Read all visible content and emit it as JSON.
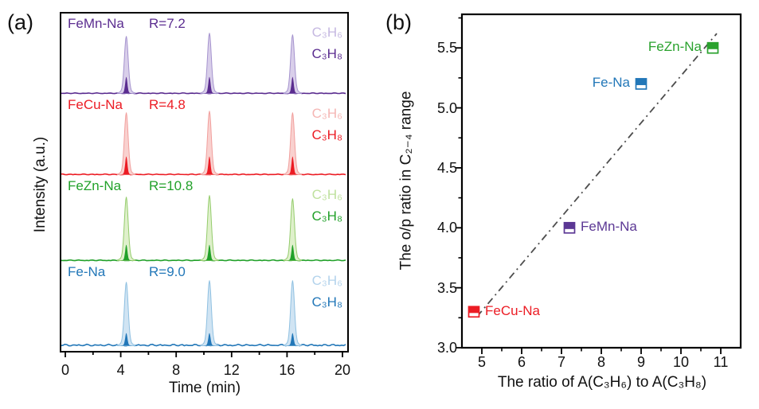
{
  "figure": {
    "background": "#ffffff",
    "text_color": "#111111"
  },
  "chart_data": [
    {
      "type": "line",
      "panel_tag": "(a)",
      "xlabel": "Time (min)",
      "ylabel": "Intensity (a.u.)",
      "xlim": [
        0,
        20
      ],
      "xticks": [
        0,
        4,
        8,
        12,
        16,
        20
      ],
      "minor_xticks": [
        2,
        6,
        10,
        14,
        18
      ],
      "grid": false,
      "peak_times_min": [
        4.4,
        10.4,
        16.4
      ],
      "peak_description": "Each peak cluster = tall light peak (C3H6) overlapping a short dark peak (C3H8); intensity in arbitrary units",
      "traces": [
        {
          "name": "FeMn-Na",
          "r_label": "R=7.2",
          "ratio": 7.2,
          "species_light": "C₃H₆",
          "species_dark": "C₃H₈",
          "color_dark": "#5b2d90",
          "color_light_fill": "#d9cfea",
          "color_light_line": "#a593ce",
          "color_light_label": "#c5b8e1",
          "light_peak_heights": [
            72,
            76,
            74
          ],
          "dark_peak_height": 21,
          "noise_amp": 0.9
        },
        {
          "name": "FeCu-Na",
          "r_label": "R=4.8",
          "ratio": 4.8,
          "species_light": "C₃H₆",
          "species_dark": "C₃H₈",
          "color_dark": "#ec1c24",
          "color_light_fill": "#f9d1cf",
          "color_light_line": "#f19f9d",
          "color_light_label": "#f5b6b4",
          "light_peak_heights": [
            78,
            80,
            78
          ],
          "dark_peak_height": 23,
          "noise_amp": 1.0
        },
        {
          "name": "FeZn-Na",
          "r_label": "R=10.8",
          "ratio": 10.8,
          "species_light": "C₃H₆",
          "species_dark": "C₃H₈",
          "color_dark": "#22a12a",
          "color_light_fill": "#dff0cb",
          "color_light_line": "#94cc6c",
          "color_light_label": "#bfe19e",
          "light_peak_heights": [
            80,
            82,
            78
          ],
          "dark_peak_height": 20,
          "noise_amp": 1.0
        },
        {
          "name": "Fe-Na",
          "r_label": "R=9.0",
          "ratio": 9.0,
          "species_light": "C₃H₆",
          "species_dark": "C₃H₈",
          "color_dark": "#2277b8",
          "color_light_fill": "#d0e4f3",
          "color_light_line": "#8fc0e1",
          "color_light_label": "#b3d3ec",
          "light_peak_heights": [
            80,
            82,
            82
          ],
          "dark_peak_height": 16,
          "noise_amp": 2.0
        }
      ]
    },
    {
      "type": "scatter",
      "panel_tag": "(b)",
      "xlabel": "The ratio of A(C₃H₆) to A(C₃H₈)",
      "ylabel": "The o/p ratio in C₂₋₄ range",
      "xlim": [
        4.5,
        11.5
      ],
      "ylim": [
        3.0,
        5.78
      ],
      "xticks": [
        5,
        6,
        7,
        8,
        9,
        10,
        11
      ],
      "yticks": [
        3.0,
        3.5,
        4.0,
        4.5,
        5.0,
        5.5
      ],
      "minor_step_x": 0.5,
      "minor_step_y": 0.25,
      "grid": false,
      "legend": "none",
      "marker": "square-top-half-filled",
      "points": [
        {
          "label": "FeCu-Na",
          "x": 4.8,
          "y": 3.3,
          "color": "#ec1c24",
          "label_side": "right"
        },
        {
          "label": "FeMn-Na",
          "x": 7.2,
          "y": 4.0,
          "color": "#5b3794",
          "label_side": "right"
        },
        {
          "label": "Fe-Na",
          "x": 9.0,
          "y": 5.2,
          "color": "#2277b8",
          "label_side": "left"
        },
        {
          "label": "FeZn-Na",
          "x": 10.8,
          "y": 5.5,
          "color": "#2aa22e",
          "label_side": "left"
        }
      ],
      "trend_line": {
        "x1": 4.88,
        "y1": 3.26,
        "x2": 10.9,
        "y2": 5.62,
        "color": "#4d4d4d",
        "style": "dash-dot"
      }
    }
  ]
}
